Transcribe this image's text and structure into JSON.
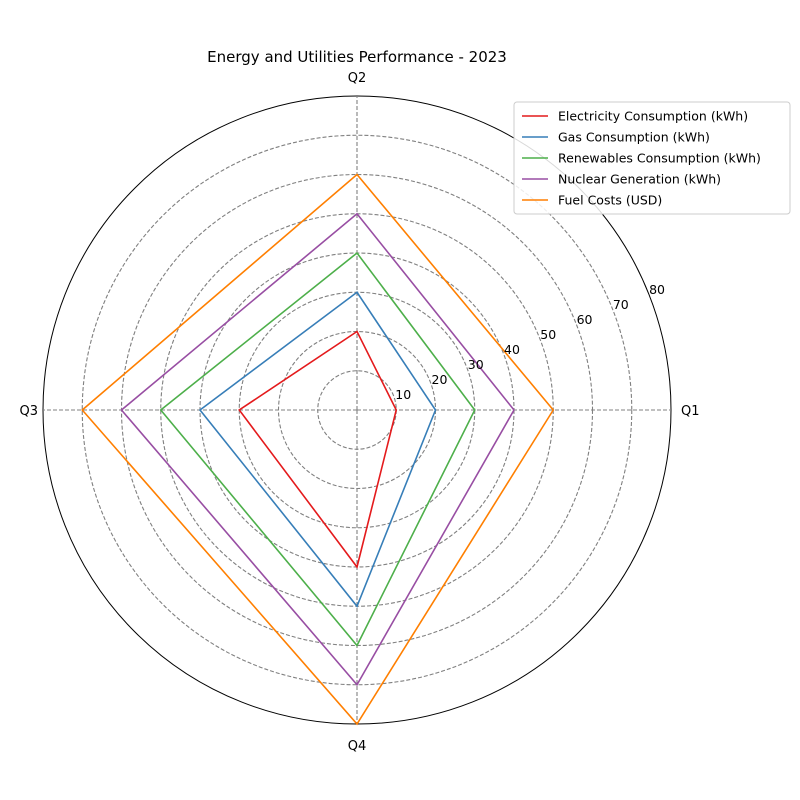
{
  "chart_data": {
    "type": "radar",
    "title": "Energy and Utilities Performance - 2023",
    "categories": [
      "Q1",
      "Q2",
      "Q3",
      "Q4"
    ],
    "rlim": [
      0,
      80
    ],
    "rticks": [
      10,
      20,
      30,
      40,
      50,
      60,
      70,
      80
    ],
    "grid": true,
    "legend_position": "top-right",
    "series": [
      {
        "name": "Electricity Consumption (kWh)",
        "color": "#e41a1c",
        "values": [
          10,
          20,
          30,
          40
        ]
      },
      {
        "name": "Gas Consumption (kWh)",
        "color": "#377eb8",
        "values": [
          20,
          30,
          40,
          50
        ]
      },
      {
        "name": "Renewables Consumption (kWh)",
        "color": "#4daf4a",
        "values": [
          30,
          40,
          50,
          60
        ]
      },
      {
        "name": "Nuclear Generation (kWh)",
        "color": "#984ea3",
        "values": [
          40,
          50,
          60,
          70
        ]
      },
      {
        "name": "Fuel Costs (USD)",
        "color": "#ff7f00",
        "values": [
          50,
          60,
          70,
          80
        ]
      }
    ]
  }
}
